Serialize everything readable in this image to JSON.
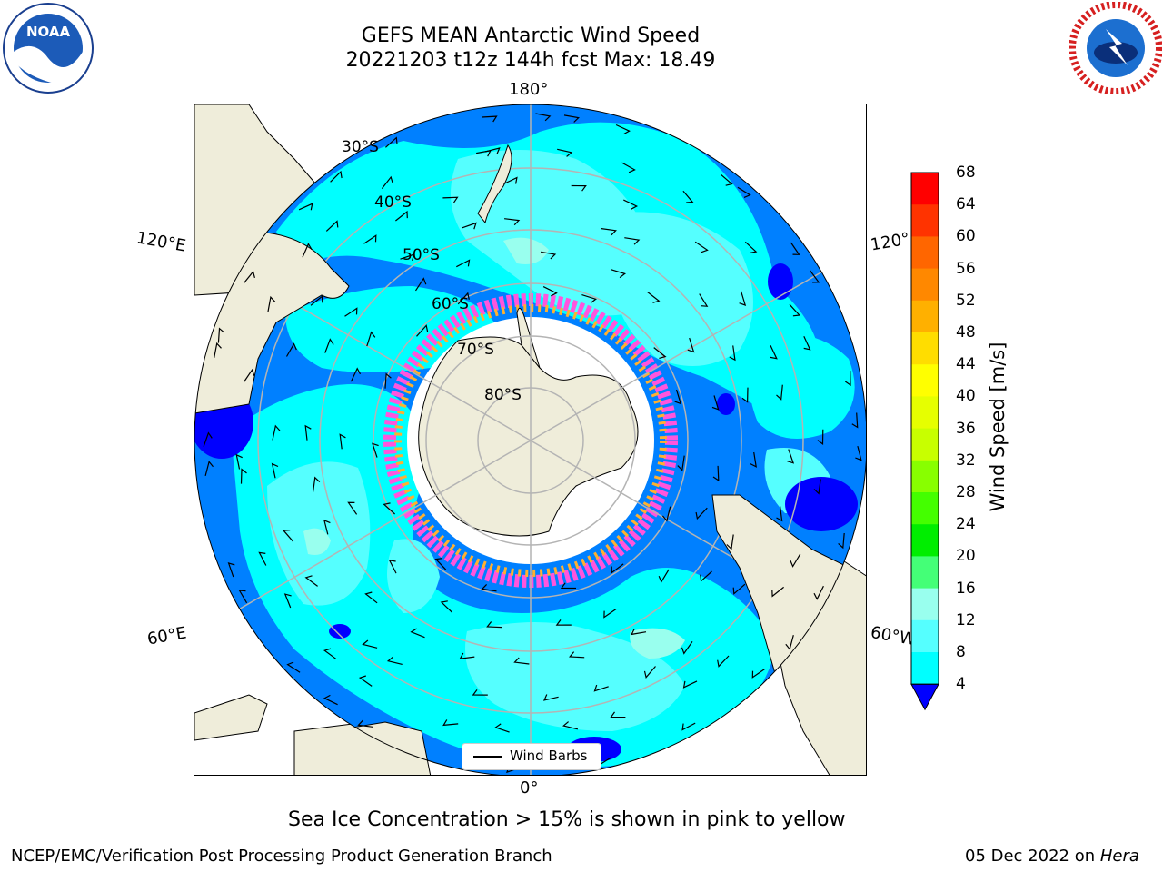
{
  "title_line1": "GEFS MEAN Antarctic Wind Speed",
  "title_line2": "20221203 t12z 144h fcst   Max: 18.49",
  "lon_labels": {
    "top": "180°",
    "bottom": "0°",
    "left_upper": "120°E",
    "left_lower": "60°E",
    "right_upper": "120°",
    "right_lower": "60°W"
  },
  "lat_labels": [
    "30°S",
    "40°S",
    "50°S",
    "60°S",
    "70°S",
    "80°S"
  ],
  "legend": {
    "wind_barbs": "Wind Barbs"
  },
  "colorbar": {
    "label": "Wind Speed [m/s]",
    "ticks": [
      "68",
      "64",
      "60",
      "56",
      "52",
      "48",
      "44",
      "40",
      "36",
      "32",
      "28",
      "24",
      "20",
      "16",
      "12",
      "8",
      "4"
    ],
    "colors": [
      "#ff0000",
      "#ff3300",
      "#ff6600",
      "#ff8800",
      "#ffb000",
      "#ffdd00",
      "#ffff00",
      "#e6ff00",
      "#c8ff00",
      "#88ff00",
      "#44ff00",
      "#00ee00",
      "#44ff77",
      "#99ffee",
      "#55ffff",
      "#00ffff",
      "#0080ff"
    ],
    "extend_color": "#0000ff"
  },
  "note": "Sea Ice Concentration > 15% is shown in pink to yellow",
  "footer_left": "NCEP/EMC/Verification Post Processing Product Generation Branch",
  "footer_right_date": "05 Dec 2022 on ",
  "footer_right_system": "Hera",
  "colors": {
    "ocean_base": "#0080ff",
    "land": "#efedda",
    "cyan": "#00ffff",
    "light_cyan": "#55ffff",
    "pale_cyan": "#99ffee",
    "dark_blue": "#0000ff",
    "ice_pink": "#ff55dd",
    "ice_orange": "#ffb030"
  }
}
